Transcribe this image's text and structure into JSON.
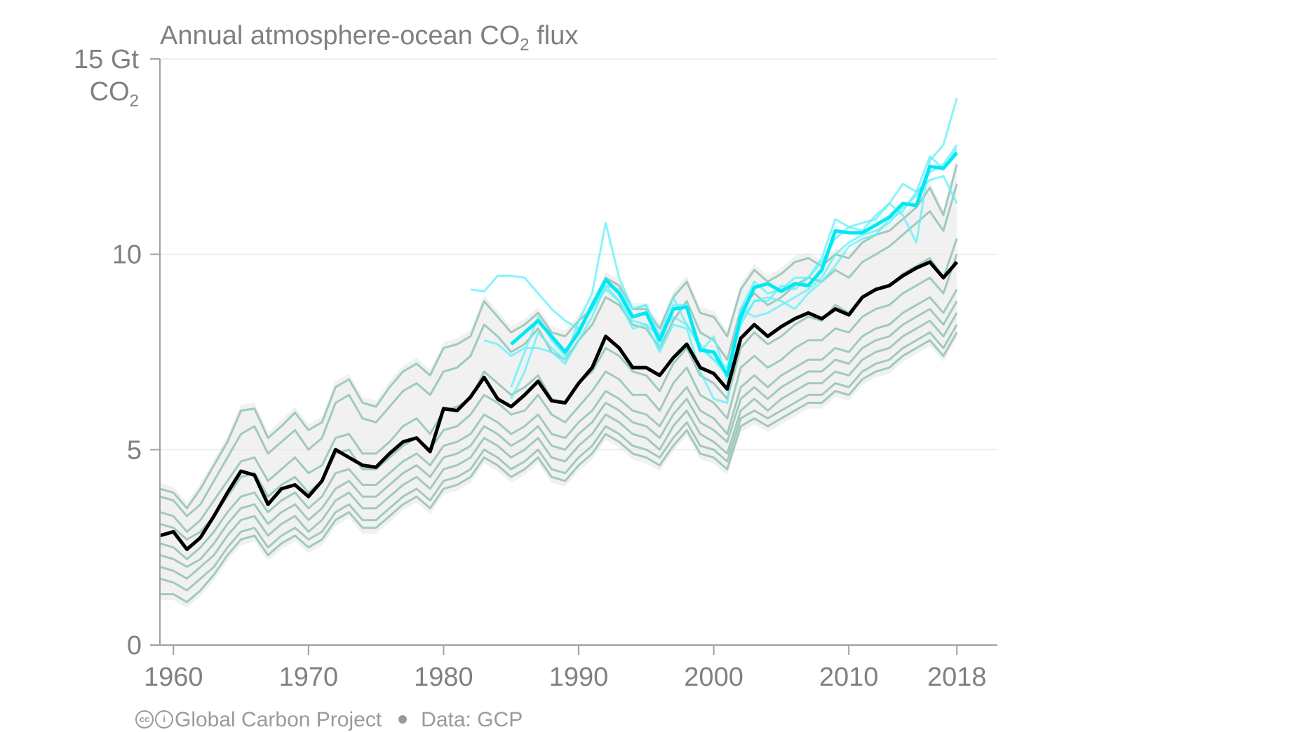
{
  "chart_data": {
    "type": "line",
    "title_main": "Annual atmosphere-ocean CO",
    "title_sub": "2",
    "title_end": " flux",
    "ylabel_top": "15 Gt",
    "ylabel_unit_main": "CO",
    "ylabel_unit_sub": "2",
    "xlim": [
      1959,
      2021
    ],
    "ylim": [
      0,
      15
    ],
    "x_ticks": [
      1960,
      1970,
      1980,
      1990,
      2000,
      2010,
      2018
    ],
    "y_ticks": [
      0,
      5,
      10
    ],
    "y_ticks_labels": [
      "0",
      "5",
      "10"
    ],
    "grid": "horizontal",
    "colors": {
      "models": "#7fb8a8",
      "data_products": "#5ff0f8",
      "gcp_mean": "#000000",
      "data_mean": "#00e8f4",
      "band": "#e6e6e6"
    },
    "gcp_budget": {
      "x": [
        1959,
        1960,
        1961,
        1962,
        1963,
        1964,
        1965,
        1966,
        1967,
        1968,
        1969,
        1970,
        1971,
        1972,
        1973,
        1974,
        1975,
        1976,
        1977,
        1978,
        1979,
        1980,
        1981,
        1982,
        1983,
        1984,
        1985,
        1986,
        1987,
        1988,
        1989,
        1990,
        1991,
        1992,
        1993,
        1994,
        1995,
        1996,
        1997,
        1998,
        1999,
        2000,
        2001,
        2002,
        2003,
        2004,
        2005,
        2006,
        2007,
        2008,
        2009,
        2010,
        2011,
        2012,
        2013,
        2014,
        2015,
        2016,
        2017,
        2018
      ],
      "values": [
        2.8,
        2.9,
        2.45,
        2.75,
        3.3,
        3.9,
        4.45,
        4.35,
        3.6,
        4.0,
        4.1,
        3.8,
        4.2,
        5.0,
        4.8,
        4.6,
        4.55,
        4.9,
        5.2,
        5.3,
        4.95,
        6.05,
        6.0,
        6.35,
        6.85,
        6.3,
        6.1,
        6.4,
        6.75,
        6.25,
        6.2,
        6.7,
        7.1,
        7.9,
        7.6,
        7.1,
        7.1,
        6.9,
        7.35,
        7.7,
        7.1,
        6.95,
        6.55,
        7.85,
        8.2,
        7.9,
        8.15,
        8.35,
        8.5,
        8.35,
        8.6,
        8.45,
        8.9,
        9.1,
        9.2,
        9.45,
        9.65,
        9.8,
        9.4,
        9.8
      ]
    },
    "data_products_mean": {
      "x": [
        1985,
        1986,
        1987,
        1988,
        1989,
        1990,
        1991,
        1992,
        1993,
        1994,
        1995,
        1996,
        1997,
        1998,
        1999,
        2000,
        2001,
        2002,
        2003,
        2004,
        2005,
        2006,
        2007,
        2008,
        2009,
        2010,
        2011,
        2012,
        2013,
        2014,
        2015,
        2016,
        2017,
        2018
      ],
      "values": [
        7.7,
        8.0,
        8.3,
        7.9,
        7.5,
        8.0,
        8.7,
        9.35,
        9.0,
        8.4,
        8.5,
        7.8,
        8.6,
        8.65,
        7.55,
        7.5,
        6.9,
        8.4,
        9.15,
        9.25,
        9.05,
        9.25,
        9.2,
        9.6,
        10.6,
        10.55,
        10.55,
        10.75,
        10.95,
        11.3,
        11.25,
        12.25,
        12.2,
        12.6
      ]
    },
    "data_products": [
      {
        "x": [
          1982,
          1983,
          1984,
          1985,
          1986,
          1987,
          1988,
          1989,
          1990,
          1991,
          1992,
          1993,
          1994,
          1995,
          1996,
          1997,
          1998,
          1999,
          2000,
          2001,
          2002,
          2003,
          2004,
          2005,
          2006,
          2007,
          2008,
          2009,
          2010,
          2011,
          2012,
          2013,
          2014,
          2015,
          2016,
          2017,
          2018
        ],
        "values": [
          9.1,
          9.05,
          9.45,
          9.45,
          9.4,
          9.0,
          8.6,
          8.3,
          8.1,
          8.6,
          9.2,
          8.8,
          8.3,
          8.2,
          7.9,
          8.4,
          8.2,
          7.6,
          7.3,
          7.1,
          8.2,
          8.8,
          8.9,
          8.8,
          8.6,
          9.0,
          9.3,
          9.7,
          10.2,
          10.4,
          10.5,
          10.9,
          11.1,
          11.6,
          11.9,
          12.0,
          11.3
        ]
      },
      {
        "x": [
          1983,
          1984,
          1985,
          1986,
          1987,
          1988,
          1989,
          1990,
          1991,
          1992,
          1993,
          1994,
          1995,
          1996,
          1997,
          1998,
          1999,
          2000,
          2001,
          2002,
          2003,
          2004,
          2005,
          2006,
          2007,
          2008,
          2009,
          2010,
          2011,
          2012,
          2013,
          2014,
          2015,
          2016,
          2017,
          2018
        ],
        "values": [
          7.8,
          7.7,
          7.4,
          7.6,
          7.6,
          7.5,
          7.2,
          7.8,
          8.4,
          9.2,
          9.1,
          8.6,
          8.7,
          7.9,
          8.9,
          8.2,
          7.7,
          7.3,
          6.9,
          8.6,
          9.3,
          9.0,
          9.1,
          9.4,
          9.4,
          9.8,
          10.4,
          10.7,
          10.6,
          11.0,
          11.3,
          11.8,
          11.6,
          12.5,
          12.2,
          12.7
        ]
      },
      {
        "x": [
          1985,
          1986,
          1987,
          1988,
          1989,
          1990,
          1991,
          1992,
          1993,
          1994,
          1995,
          1996,
          1997,
          1998,
          1999,
          2000,
          2001,
          2002,
          2003,
          2004,
          2005,
          2006,
          2007,
          2008,
          2009,
          2010,
          2011,
          2012,
          2013,
          2014,
          2015,
          2016,
          2017,
          2018
        ],
        "values": [
          6.3,
          7.0,
          8.0,
          7.6,
          7.3,
          8.3,
          9.0,
          10.8,
          9.4,
          8.6,
          8.7,
          7.6,
          8.7,
          8.7,
          7.5,
          7.9,
          6.8,
          8.3,
          8.8,
          8.8,
          9.2,
          9.1,
          9.4,
          9.9,
          10.9,
          10.7,
          10.8,
          10.9,
          11.3,
          11.0,
          10.3,
          12.4,
          12.8,
          14.0
        ]
      },
      {
        "x": [
          1985,
          1986,
          1987,
          1988,
          1989,
          1990,
          1991,
          1992,
          1993,
          1994,
          1995,
          1996,
          1997,
          1998,
          1999,
          2000,
          2001,
          2002,
          2003,
          2004,
          2005,
          2006,
          2007,
          2008,
          2009,
          2010,
          2011,
          2012,
          2013,
          2014,
          2015,
          2016,
          2017,
          2018
        ],
        "values": [
          6.6,
          7.5,
          8.4,
          7.8,
          7.4,
          8.1,
          8.6,
          9.1,
          8.8,
          8.1,
          8.2,
          7.5,
          8.2,
          8.1,
          7.0,
          6.3,
          6.2,
          8.6,
          8.4,
          8.5,
          8.7,
          8.9,
          9.1,
          9.4,
          10.0,
          10.3,
          10.5,
          10.6,
          10.8,
          11.2,
          11.5,
          12.1,
          12.3,
          12.8
        ]
      }
    ],
    "models": [
      {
        "values": [
          4.0,
          3.9,
          3.5,
          4.0,
          4.6,
          5.2,
          6.0,
          6.05,
          5.3,
          5.6,
          5.95,
          5.5,
          5.7,
          6.6,
          6.8,
          6.2,
          6.1,
          6.6,
          7.0,
          7.2,
          6.9,
          7.6,
          7.7,
          7.9,
          8.8,
          8.4,
          8.0,
          8.2,
          8.5,
          8.0,
          7.9,
          8.3,
          8.6,
          9.4,
          9.2,
          8.6,
          8.6,
          8.1,
          8.9,
          9.3,
          8.5,
          8.4,
          7.9,
          9.1,
          9.6,
          9.3,
          9.5,
          9.8,
          9.9,
          9.7,
          10.0,
          9.9,
          10.3,
          10.5,
          10.6,
          10.9,
          11.2,
          11.7,
          11.0,
          12.3
        ]
      },
      {
        "values": [
          3.8,
          3.7,
          3.3,
          3.6,
          4.2,
          4.8,
          5.4,
          5.6,
          4.9,
          5.2,
          5.5,
          5.0,
          5.3,
          6.2,
          6.4,
          5.8,
          5.7,
          6.1,
          6.5,
          6.7,
          6.4,
          7.0,
          7.1,
          7.4,
          8.2,
          7.9,
          7.5,
          7.7,
          8.1,
          7.5,
          7.3,
          7.8,
          8.2,
          8.9,
          8.7,
          8.2,
          8.1,
          7.6,
          8.3,
          8.8,
          8.0,
          7.8,
          7.3,
          8.6,
          9.0,
          8.7,
          8.9,
          9.2,
          9.4,
          9.3,
          9.6,
          9.4,
          9.8,
          10.0,
          10.2,
          10.5,
          10.8,
          11.1,
          10.6,
          11.8
        ]
      },
      {
        "values": [
          3.4,
          3.3,
          2.9,
          3.2,
          3.7,
          4.2,
          4.7,
          4.8,
          4.2,
          4.5,
          4.8,
          4.4,
          4.6,
          5.3,
          5.4,
          4.9,
          4.9,
          5.2,
          5.6,
          5.8,
          5.4,
          6.0,
          6.1,
          6.3,
          7.0,
          6.7,
          6.4,
          6.6,
          6.9,
          6.3,
          6.2,
          6.7,
          7.0,
          7.6,
          7.4,
          7.0,
          6.9,
          6.5,
          7.2,
          7.6,
          6.9,
          6.7,
          6.3,
          7.6,
          8.0,
          7.7,
          7.9,
          8.2,
          8.4,
          8.3,
          8.7,
          8.5,
          8.9,
          9.1,
          9.2,
          9.5,
          9.7,
          9.9,
          9.4,
          10.4
        ]
      },
      {
        "values": [
          3.1,
          3.0,
          2.7,
          2.9,
          3.3,
          3.8,
          4.3,
          4.4,
          3.8,
          4.1,
          4.3,
          3.9,
          4.2,
          4.9,
          5.0,
          4.5,
          4.5,
          4.8,
          5.1,
          5.3,
          5.0,
          5.5,
          5.6,
          5.9,
          6.4,
          6.2,
          5.9,
          6.0,
          6.4,
          5.9,
          5.7,
          6.1,
          6.5,
          7.0,
          6.8,
          6.4,
          6.4,
          6.0,
          6.7,
          7.1,
          6.4,
          6.2,
          5.8,
          7.1,
          7.4,
          7.1,
          7.3,
          7.6,
          7.8,
          7.8,
          8.1,
          8.0,
          8.4,
          8.6,
          8.7,
          9.0,
          9.2,
          9.4,
          9.0,
          10.0
        ]
      },
      {
        "values": [
          2.6,
          2.5,
          2.2,
          2.5,
          2.9,
          3.4,
          3.8,
          3.9,
          3.4,
          3.7,
          3.9,
          3.5,
          3.8,
          4.4,
          4.5,
          4.1,
          4.1,
          4.4,
          4.7,
          4.9,
          4.6,
          5.1,
          5.2,
          5.4,
          5.9,
          5.7,
          5.4,
          5.6,
          5.9,
          5.4,
          5.3,
          5.7,
          6.0,
          6.5,
          6.3,
          6.0,
          5.9,
          5.6,
          6.2,
          6.6,
          6.0,
          5.8,
          5.4,
          6.6,
          6.9,
          6.6,
          6.9,
          7.1,
          7.3,
          7.3,
          7.6,
          7.5,
          7.9,
          8.1,
          8.2,
          8.5,
          8.7,
          8.9,
          8.5,
          9.1
        ]
      },
      {
        "values": [
          2.3,
          2.2,
          2.0,
          2.2,
          2.6,
          3.1,
          3.5,
          3.6,
          3.1,
          3.4,
          3.6,
          3.2,
          3.5,
          4.0,
          4.2,
          3.8,
          3.8,
          4.1,
          4.4,
          4.6,
          4.3,
          4.8,
          4.9,
          5.1,
          5.6,
          5.4,
          5.1,
          5.3,
          5.6,
          5.1,
          5.0,
          5.4,
          5.7,
          6.2,
          6.0,
          5.7,
          5.6,
          5.3,
          5.9,
          6.3,
          5.7,
          5.5,
          5.2,
          6.3,
          6.6,
          6.3,
          6.6,
          6.8,
          7.0,
          7.0,
          7.3,
          7.2,
          7.6,
          7.8,
          7.9,
          8.2,
          8.4,
          8.6,
          8.2,
          8.8
        ]
      },
      {
        "values": [
          2.0,
          1.9,
          1.7,
          2.0,
          2.3,
          2.8,
          3.2,
          3.3,
          2.8,
          3.1,
          3.3,
          2.9,
          3.2,
          3.7,
          3.9,
          3.5,
          3.5,
          3.8,
          4.1,
          4.3,
          4.0,
          4.5,
          4.6,
          4.8,
          5.3,
          5.1,
          4.8,
          5.0,
          5.3,
          4.8,
          4.7,
          5.1,
          5.4,
          5.9,
          5.7,
          5.4,
          5.3,
          5.0,
          5.6,
          6.0,
          5.4,
          5.2,
          4.9,
          6.0,
          6.3,
          6.0,
          6.3,
          6.5,
          6.7,
          6.7,
          7.0,
          6.9,
          7.3,
          7.5,
          7.6,
          7.9,
          8.1,
          8.3,
          7.9,
          8.5
        ]
      },
      {
        "values": [
          1.7,
          1.6,
          1.4,
          1.7,
          2.0,
          2.5,
          2.9,
          3.0,
          2.5,
          2.8,
          3.0,
          2.7,
          2.9,
          3.4,
          3.6,
          3.2,
          3.2,
          3.5,
          3.8,
          4.0,
          3.7,
          4.2,
          4.3,
          4.5,
          5.0,
          4.8,
          4.5,
          4.7,
          5.0,
          4.5,
          4.4,
          4.8,
          5.1,
          5.6,
          5.4,
          5.1,
          5.0,
          4.8,
          5.3,
          5.7,
          5.1,
          5.0,
          4.7,
          5.8,
          6.0,
          5.8,
          6.0,
          6.2,
          6.4,
          6.4,
          6.7,
          6.6,
          7.0,
          7.2,
          7.3,
          7.6,
          7.8,
          8.0,
          7.6,
          8.2
        ]
      },
      {
        "values": [
          1.3,
          1.3,
          1.1,
          1.4,
          1.8,
          2.3,
          2.7,
          2.8,
          2.3,
          2.6,
          2.8,
          2.5,
          2.7,
          3.2,
          3.4,
          3.0,
          3.0,
          3.3,
          3.6,
          3.8,
          3.5,
          4.0,
          4.1,
          4.3,
          4.8,
          4.6,
          4.3,
          4.5,
          4.8,
          4.3,
          4.2,
          4.6,
          4.9,
          5.4,
          5.2,
          4.9,
          4.8,
          4.6,
          5.1,
          5.5,
          4.9,
          4.8,
          4.5,
          5.6,
          5.8,
          5.6,
          5.8,
          6.0,
          6.2,
          6.2,
          6.5,
          6.4,
          6.8,
          7.0,
          7.1,
          7.4,
          7.6,
          7.8,
          7.4,
          8.0
        ]
      }
    ]
  },
  "footer": {
    "cc_label": "cc",
    "by_label": "i",
    "org": "Global Carbon Project",
    "source": "Data: GCP"
  }
}
